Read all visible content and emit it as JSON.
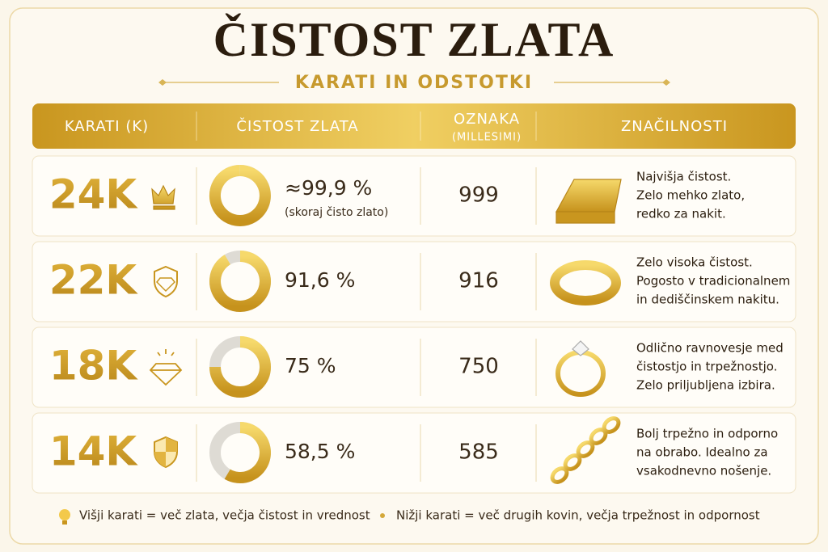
{
  "header": {
    "title": "ČISTOST ZLATA",
    "subtitle": "KARATI IN ODSTOTKI"
  },
  "table": {
    "columns": [
      {
        "label": "KARATI (K)"
      },
      {
        "label": "ČISTOST ZLATA"
      },
      {
        "label": "OZNAKA",
        "sublabel": "(MILLESIMI)"
      },
      {
        "label": "ZNAČILNOSTI"
      }
    ],
    "rows": [
      {
        "karat": "24K",
        "purity": {
          "value": 99.9,
          "label": "≈99,9 %"
        },
        "note": "(skoraj čisto zlato)",
        "millesimi": 999,
        "description": [
          "Najvišja čistost.",
          "Zelo mehko zlato,",
          "redko za nakit."
        ]
      },
      {
        "karat": "22K",
        "purity": {
          "value": 91.6,
          "label": "91,6 %"
        },
        "millesimi": 916,
        "description": [
          "Zelo visoka čistost.",
          "Pogosto v tradicionalnem",
          "in dediščinskem nakitu."
        ]
      },
      {
        "karat": "18K",
        "purity": {
          "value": 75,
          "label": "75 %"
        },
        "millesimi": 750,
        "description": [
          "Odlično ravnovesje med",
          "čistostjo in trpežnostjo.",
          "Zelo priljubljena izbira."
        ]
      },
      {
        "karat": "14K",
        "purity": {
          "value": 58.5,
          "label": "58,5 %"
        },
        "millesimi": 585,
        "description": [
          "Bolj trpežno in odporno",
          "na obrabo. Idealno za",
          "vsakodnevno nošenje."
        ]
      }
    ]
  },
  "footer": {
    "notes": [
      "Višji karati = več zlata, večja čistost in vrednost",
      "Nižji karati = več drugih kovin, večja trpežnost in odpornost"
    ]
  }
}
